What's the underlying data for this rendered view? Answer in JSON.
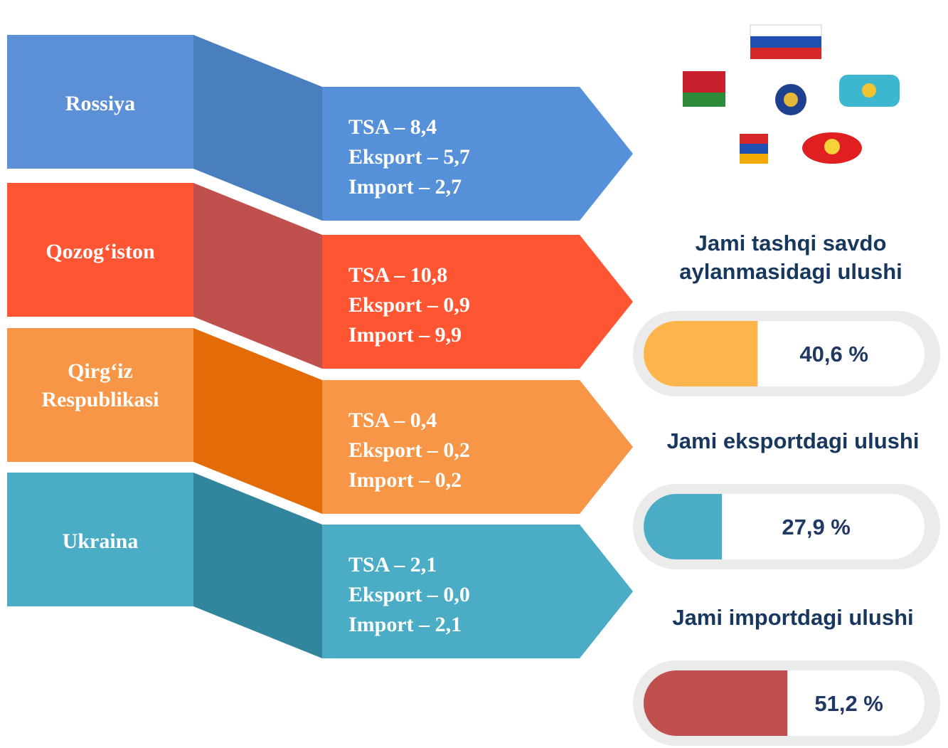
{
  "countries": [
    {
      "name": "Rossiya",
      "lines": [
        "TSA – 8,4",
        "Eksport – 5,7",
        "Import – 2,7"
      ],
      "colors": [
        "#5b8fd6",
        "#4a7fbf",
        "#5590d9"
      ]
    },
    {
      "name": "Qozog‘iston",
      "lines": [
        "TSA – 10,8",
        "Eksport – 0,9",
        "Import – 9,9"
      ],
      "colors": [
        "#ff5533",
        "#c0504d",
        "#ff5533"
      ]
    },
    {
      "name": "Qirg‘iz Respublikasi",
      "lines": [
        "TSA – 0,4",
        "Eksport – 0,2",
        "Import – 0,2"
      ],
      "colors": [
        "#f79646",
        "#e36c09",
        "#f79646"
      ]
    },
    {
      "name": "Ukraina",
      "lines": [
        "TSA – 2,1",
        "Eksport – 0,0",
        "Import – 2,1"
      ],
      "colors": [
        "#4bacc6",
        "#31859c",
        "#4bacc6"
      ]
    }
  ],
  "shares": [
    {
      "title": "Jami tashqi savdo aylanmasidagi ulushi",
      "value": 40.6,
      "label": "40,6 %",
      "color": "#ffb54c"
    },
    {
      "title": "Jami eksportdagi ulushi",
      "value": 27.9,
      "label": "27,9 %",
      "color": "#4bacc6"
    },
    {
      "title": "Jami importdagi ulushi",
      "value": 51.2,
      "label": "51,2 %",
      "color": "#c0504d"
    }
  ]
}
